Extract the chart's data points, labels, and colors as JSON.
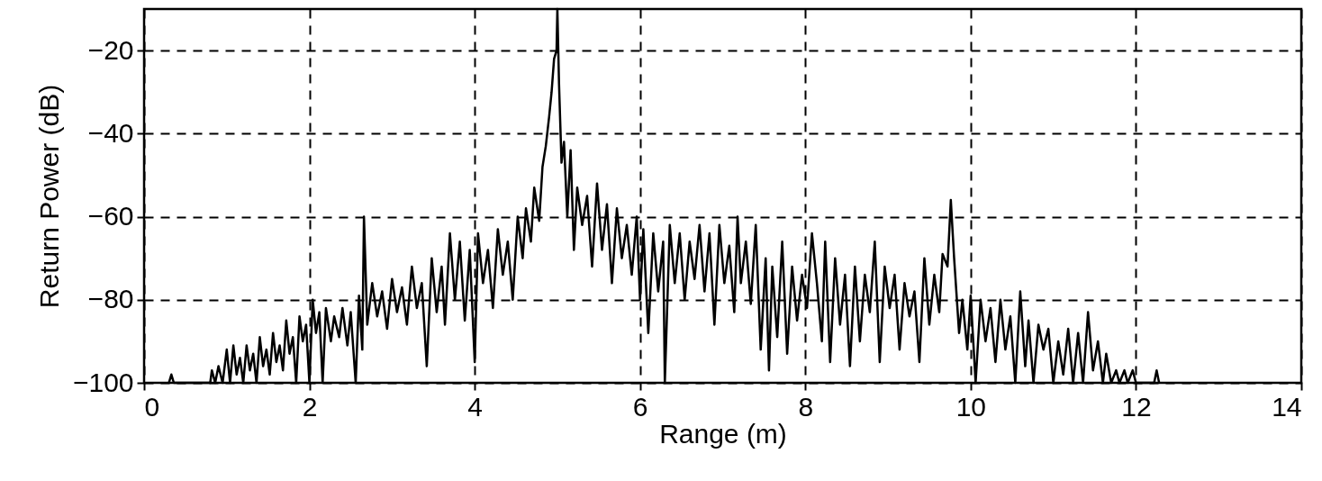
{
  "chart_data": {
    "type": "line",
    "xlabel": "Range (m)",
    "ylabel": "Return Power (dB)",
    "xlim": [
      0,
      14
    ],
    "xticks": [
      0,
      2,
      4,
      6,
      8,
      10,
      12,
      14
    ],
    "ylim": [
      -100,
      -10
    ],
    "yticks": [
      -100,
      -80,
      -60,
      -40,
      -20
    ],
    "grid": true,
    "line_style": "solid",
    "series": [
      {
        "color": "#000000",
        "x": [
          0.3,
          0.33,
          0.36,
          0.8,
          0.82,
          0.86,
          0.9,
          0.95,
          1.0,
          1.04,
          1.08,
          1.12,
          1.16,
          1.2,
          1.24,
          1.28,
          1.32,
          1.36,
          1.4,
          1.44,
          1.48,
          1.52,
          1.56,
          1.6,
          1.64,
          1.68,
          1.72,
          1.76,
          1.8,
          1.84,
          1.88,
          1.92,
          1.96,
          2.0,
          2.04,
          2.08,
          2.12,
          2.16,
          2.2,
          2.26,
          2.3,
          2.36,
          2.4,
          2.46,
          2.5,
          2.56,
          2.6,
          2.64,
          2.66,
          2.7,
          2.76,
          2.82,
          2.88,
          2.94,
          3.0,
          3.06,
          3.12,
          3.18,
          3.24,
          3.3,
          3.36,
          3.42,
          3.48,
          3.54,
          3.6,
          3.64,
          3.7,
          3.76,
          3.82,
          3.88,
          3.94,
          4.0,
          4.04,
          4.1,
          4.16,
          4.22,
          4.28,
          4.34,
          4.4,
          4.46,
          4.52,
          4.58,
          4.62,
          4.68,
          4.72,
          4.78,
          4.82,
          4.86,
          4.9,
          4.93,
          4.96,
          4.99,
          5.0,
          5.02,
          5.05,
          5.08,
          5.12,
          5.16,
          5.2,
          5.24,
          5.3,
          5.36,
          5.42,
          5.48,
          5.54,
          5.6,
          5.66,
          5.72,
          5.78,
          5.84,
          5.9,
          5.96,
          6.0,
          6.04,
          6.1,
          6.16,
          6.22,
          6.28,
          6.3,
          6.36,
          6.42,
          6.48,
          6.54,
          6.6,
          6.66,
          6.72,
          6.78,
          6.84,
          6.9,
          6.96,
          7.02,
          7.08,
          7.14,
          7.18,
          7.22,
          7.28,
          7.34,
          7.4,
          7.46,
          7.52,
          7.56,
          7.6,
          7.66,
          7.72,
          7.78,
          7.84,
          7.9,
          7.96,
          8.02,
          8.08,
          8.14,
          8.2,
          8.24,
          8.3,
          8.36,
          8.42,
          8.48,
          8.54,
          8.6,
          8.66,
          8.72,
          8.78,
          8.84,
          8.9,
          8.96,
          9.02,
          9.08,
          9.14,
          9.2,
          9.26,
          9.32,
          9.38,
          9.44,
          9.5,
          9.56,
          9.62,
          9.66,
          9.72,
          9.76,
          9.8,
          9.86,
          9.9,
          9.96,
          10.0,
          10.06,
          10.12,
          10.18,
          10.24,
          10.3,
          10.36,
          10.42,
          10.48,
          10.54,
          10.6,
          10.66,
          10.7,
          10.76,
          10.82,
          10.88,
          10.94,
          11.0,
          11.06,
          11.12,
          11.18,
          11.24,
          11.3,
          11.36,
          11.42,
          11.48,
          11.54,
          11.6,
          11.64,
          11.7,
          11.76,
          11.8,
          11.86,
          11.9,
          11.96,
          12.0,
          12.22,
          12.25,
          12.28
        ],
        "values": [
          -100,
          -98,
          -100,
          -100,
          -97,
          -100,
          -96,
          -100,
          -92,
          -100,
          -91,
          -98,
          -94,
          -100,
          -91,
          -97,
          -93,
          -100,
          -89,
          -96,
          -92,
          -98,
          -88,
          -95,
          -91,
          -97,
          -85,
          -93,
          -89,
          -100,
          -84,
          -90,
          -86,
          -100,
          -80,
          -88,
          -83,
          -100,
          -82,
          -90,
          -84,
          -89,
          -82,
          -91,
          -83,
          -100,
          -79,
          -92,
          -60,
          -86,
          -76,
          -84,
          -78,
          -87,
          -75,
          -83,
          -77,
          -86,
          -72,
          -82,
          -76,
          -96,
          -70,
          -83,
          -72,
          -86,
          -64,
          -80,
          -66,
          -85,
          -68,
          -95,
          -64,
          -76,
          -68,
          -82,
          -63,
          -74,
          -66,
          -80,
          -60,
          -70,
          -58,
          -66,
          -53,
          -61,
          -48,
          -43,
          -36,
          -30,
          -22,
          -20,
          -10,
          -28,
          -47,
          -42,
          -60,
          -44,
          -68,
          -53,
          -62,
          -55,
          -72,
          -52,
          -68,
          -57,
          -76,
          -58,
          -70,
          -62,
          -74,
          -60,
          -80,
          -63,
          -88,
          -64,
          -78,
          -66,
          -100,
          -62,
          -76,
          -64,
          -80,
          -66,
          -75,
          -62,
          -78,
          -64,
          -86,
          -62,
          -76,
          -67,
          -83,
          -60,
          -76,
          -66,
          -81,
          -62,
          -92,
          -70,
          -97,
          -72,
          -89,
          -66,
          -93,
          -72,
          -85,
          -74,
          -82,
          -64,
          -76,
          -90,
          -66,
          -95,
          -70,
          -86,
          -74,
          -96,
          -72,
          -90,
          -74,
          -83,
          -66,
          -95,
          -72,
          -82,
          -74,
          -92,
          -76,
          -84,
          -78,
          -95,
          -70,
          -86,
          -74,
          -83,
          -69,
          -72,
          -56,
          -70,
          -88,
          -80,
          -92,
          -79,
          -100,
          -80,
          -90,
          -82,
          -95,
          -80,
          -92,
          -84,
          -100,
          -78,
          -96,
          -85,
          -100,
          -86,
          -92,
          -87,
          -100,
          -90,
          -98,
          -87,
          -100,
          -88,
          -100,
          -83,
          -97,
          -90,
          -100,
          -93,
          -100,
          -97,
          -100,
          -97,
          -100,
          -97,
          -100,
          -100,
          -97,
          -100
        ]
      }
    ]
  }
}
